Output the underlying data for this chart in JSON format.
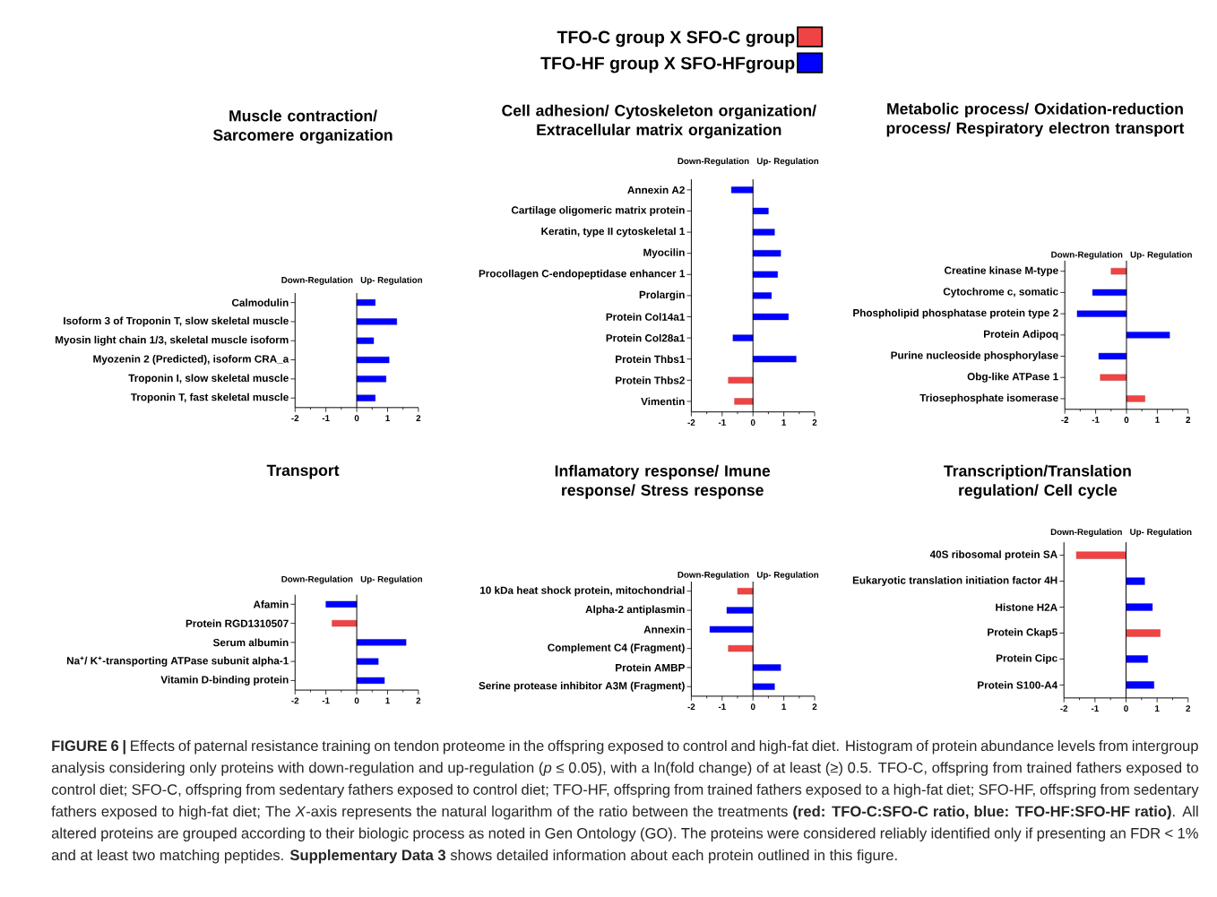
{
  "chart_data": [
    {
      "type": "bar",
      "orientation": "horizontal",
      "title": "Muscle contraction/ Sarcomere organization",
      "legend": "top",
      "categories": [
        "Calmodulin",
        "Isoform 3 of Troponin T, slow skeletal muscle",
        "Myosin light chain 1/3, skeletal muscle isoform",
        "Myozenin 2 (Predicted), isoform CRA_a",
        "Troponin I, slow skeletal muscle",
        "Troponin T, fast skeletal muscle"
      ],
      "series": [
        {
          "name": "TFO-C group X SFO-C group",
          "color": "#f04444",
          "values": [
            null,
            null,
            null,
            null,
            null,
            null
          ]
        },
        {
          "name": "TFO-HF group X SFO-HFgroup",
          "color": "#0000ff",
          "values": [
            0.6,
            1.3,
            0.55,
            1.05,
            0.95,
            0.6
          ]
        }
      ],
      "xlim": [
        -2,
        2
      ],
      "xticks": [
        -2,
        -1,
        0,
        1,
        2
      ],
      "annotations": [
        "Down-Regulation",
        "Up- Regulation",
        "**FIGURE 6 |** Effects of paternal resistance training on tendon proteome in the offspring exposed to control and high-fat diet. Histogram of protein abundance levels from intergroup analysis considering only proteins with down-regulation and up-regulation (*p* ≤ 0.05), with a ln(fold change) of at least (≥) 0.5. TFO-C, offspring from trained fathers exposed to control diet; SFO-C, offspring from sedentary fathers exposed to control diet; TFO-HF, offspring from trained fathers exposed to a high-fat diet; SFO-HF, offspring from sedentary fathers exposed to high-fat diet; The *X*-axis represents the natural logarithm of the ratio between the treatments **(red: TFO-C:SFO-C ratio, blue: TFO-HF:SFO-HF ratio)**. All altered proteins are grouped according to their biologic process as noted in Gen Ontology (GO). The proteins were considered reliably identified only if presenting an FDR < 1% and at least two matching peptides. **Supplementary Data 3** shows detailed information about each protein outlined in this figure."
      ]
    },
    {
      "type": "bar",
      "orientation": "horizontal",
      "title": "Cell adhesion/ Cytoskeleton organization/ Extracellular matrix organization",
      "categories": [
        "Annexin A2",
        "Cartilage oligomeric matrix protein",
        "Keratin, type II cytoskeletal 1",
        "Myocilin",
        "Procollagen C-endopeptidase enhancer 1",
        "Prolargin",
        "Protein Col14a1",
        "Protein Col28a1",
        "Protein Thbs1",
        "Protein Thbs2",
        "Vimentin"
      ],
      "series": [
        {
          "color": "#f04444",
          "values": [
            null,
            null,
            null,
            null,
            null,
            null,
            null,
            null,
            null,
            -0.8,
            -0.6
          ]
        },
        {
          "color": "#0000ff",
          "values": [
            -0.7,
            0.5,
            0.7,
            0.9,
            0.8,
            0.6,
            1.15,
            -0.65,
            1.4,
            null,
            null
          ]
        }
      ],
      "xlim": [
        -2,
        2
      ],
      "xticks": [
        -2,
        -1,
        0,
        1,
        2
      ],
      "annotations": [
        "Down-Regulation",
        "Up- Regulation"
      ]
    },
    {
      "type": "bar",
      "orientation": "horizontal",
      "title": "Metabolic process/ Oxidation-reduction process/ Respiratory electron transport",
      "categories": [
        "Creatine kinase M-type",
        "Cytochrome c, somatic",
        "Phospholipid phosphatase protein type 2",
        "Protein Adipoq",
        "Purine nucleoside phosphorylase",
        "Obg-like ATPase 1",
        "Triosephosphate isomerase"
      ],
      "series": [
        {
          "color": "#f04444",
          "values": [
            -0.5,
            null,
            null,
            null,
            null,
            -0.85,
            0.6
          ]
        },
        {
          "color": "#0000ff",
          "values": [
            null,
            -1.1,
            -1.6,
            1.4,
            -0.9,
            null,
            null
          ]
        }
      ],
      "xlim": [
        -2,
        2
      ],
      "xticks": [
        -2,
        -1,
        0,
        1,
        2
      ],
      "annotations": [
        "Down-Regulation",
        "Up- Regulation"
      ]
    },
    {
      "type": "bar",
      "orientation": "horizontal",
      "title": "Transport",
      "categories": [
        "Afamin",
        "Protein RGD1310507",
        "Serum albumin",
        "Na$^{+}$/ K$^{+}$-transporting ATPase subunit alpha-1",
        "Vitamin D-binding protein"
      ],
      "series": [
        {
          "color": "#f04444",
          "values": [
            null,
            -0.8,
            null,
            null,
            null
          ]
        },
        {
          "color": "#0000ff",
          "values": [
            -1.0,
            null,
            1.6,
            0.7,
            0.9
          ]
        }
      ],
      "xlim": [
        -2,
        2
      ],
      "xticks": [
        -2,
        -1,
        0,
        1,
        2
      ],
      "annotations": [
        "Down-Regulation",
        "Up- Regulation"
      ]
    },
    {
      "type": "bar",
      "orientation": "horizontal",
      "title": "Inflamatory response/ Imune response/ Stress response",
      "categories": [
        "10 kDa heat shock protein, mitochondrial",
        "Alpha-2 antiplasmin",
        "Annexin",
        "Complement C4 (Fragment)",
        "Protein AMBP",
        "Serine protease inhibitor A3M (Fragment)"
      ],
      "series": [
        {
          "color": "#f04444",
          "values": [
            -0.5,
            null,
            null,
            -0.8,
            null,
            null
          ]
        },
        {
          "color": "#0000ff",
          "values": [
            null,
            -0.85,
            -1.4,
            null,
            0.9,
            0.7
          ]
        }
      ],
      "xlim": [
        -2,
        2
      ],
      "xticks": [
        -2,
        -1,
        0,
        1,
        2
      ],
      "annotations": [
        "Down-Regulation",
        "Up- Regulation"
      ]
    },
    {
      "type": "bar",
      "orientation": "horizontal",
      "title": "Transcription/Translation regulation/ Cell cycle",
      "categories": [
        "40S ribosomal protein SA",
        "Eukaryotic translation initiation factor 4H",
        "Histone H2A",
        "Protein Ckap5",
        "Protein Cipc",
        "Protein S100-A4"
      ],
      "series": [
        {
          "color": "#f04444",
          "values": [
            -1.6,
            null,
            null,
            1.1,
            null,
            null
          ]
        },
        {
          "color": "#0000ff",
          "values": [
            null,
            0.6,
            0.85,
            null,
            0.7,
            0.9
          ]
        }
      ],
      "xlim": [
        -2,
        2
      ],
      "xticks": [
        -2,
        -1,
        0,
        1,
        2
      ],
      "annotations": [
        "Down-Regulation",
        "Up- Regulation"
      ]
    }
  ]
}
